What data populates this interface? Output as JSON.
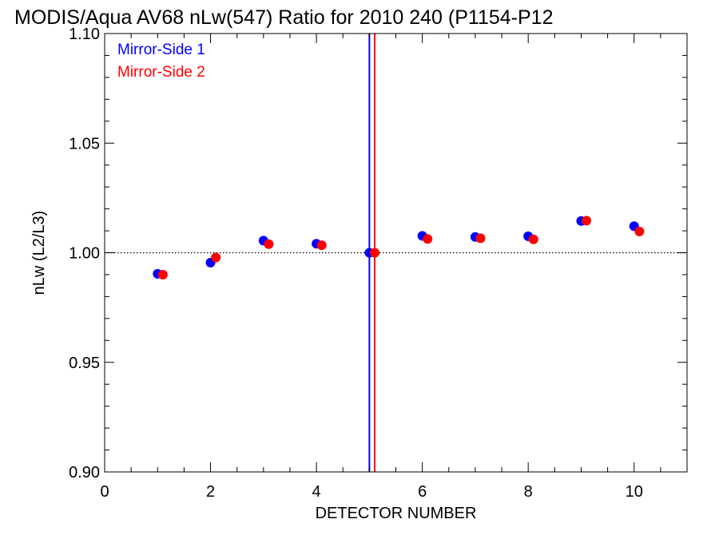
{
  "chart_data": {
    "type": "scatter",
    "title": "MODIS/Aqua AV68 nLw(547) Ratio for 2010 240 (P1154-P12",
    "xlabel": "DETECTOR NUMBER",
    "ylabel": "nLw (L2/L3)",
    "xlim": [
      0,
      11
    ],
    "ylim": [
      0.9,
      1.1
    ],
    "x_ticks": [
      0,
      2,
      4,
      6,
      8,
      10
    ],
    "y_ticks": [
      0.9,
      0.95,
      1.0,
      1.05,
      1.1
    ],
    "x_tick_labels": [
      "0",
      "2",
      "4",
      "6",
      "8",
      "10"
    ],
    "y_tick_labels": [
      "0.90",
      "0.95",
      "1.00",
      "1.05",
      "1.10"
    ],
    "grid": false,
    "reference_line": {
      "y": 1.0,
      "style": "dotted",
      "color": "#000000"
    },
    "vertical_lines": [
      {
        "x": 5.0,
        "color": "#0000ff"
      },
      {
        "x": 5.1,
        "color": "#ff0000"
      }
    ],
    "legend_placement": "top-left",
    "series": [
      {
        "name": "Mirror-Side 1",
        "color": "#0000ff",
        "x": [
          1,
          2,
          3,
          4,
          5,
          6,
          7,
          8,
          9,
          10
        ],
        "y": [
          0.9904,
          0.9955,
          1.0055,
          1.0041,
          1.0,
          1.0077,
          1.0072,
          1.0075,
          1.0145,
          1.0121
        ]
      },
      {
        "name": "Mirror-Side 2",
        "color": "#ff0000",
        "x": [
          1.1,
          2.1,
          3.1,
          4.1,
          5.1,
          6.1,
          7.1,
          8.1,
          9.1,
          10.1
        ],
        "y": [
          0.99,
          0.9978,
          1.0039,
          1.0034,
          1.0,
          1.0063,
          1.0066,
          1.0061,
          1.0146,
          1.0097
        ]
      }
    ]
  }
}
